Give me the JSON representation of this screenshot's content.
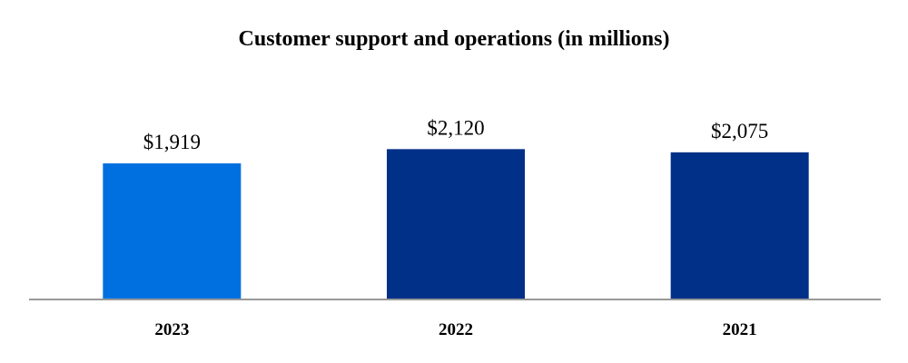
{
  "chart_data": {
    "type": "bar",
    "title": "Customer support and operations (in millions)",
    "xlabel": "",
    "ylabel": "",
    "categories": [
      "2023",
      "2022",
      "2021"
    ],
    "values": [
      1919,
      2120,
      2075
    ],
    "data_labels": [
      "$1,919",
      "$2,120",
      "$2,075"
    ],
    "colors": [
      "#0070E0",
      "#003087",
      "#003087"
    ],
    "axis_color": "#999999",
    "ylim": [
      0,
      2700
    ],
    "grid": false,
    "legend": "none"
  }
}
